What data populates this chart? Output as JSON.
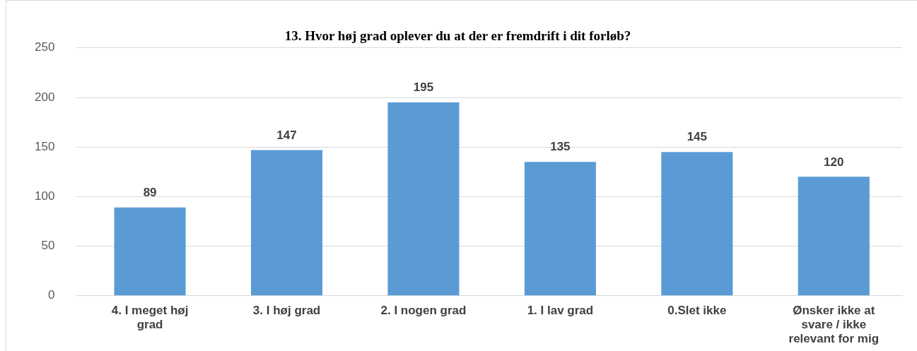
{
  "chart_data": {
    "type": "bar",
    "title": "13. Hvor høj grad oplever du at der er fremdrift i dit forløb?",
    "categories": [
      "4. I meget høj grad",
      "3. I høj grad",
      "2. I nogen grad",
      "1. I lav grad",
      "0.Slet ikke",
      "Ønsker ikke at svare / ikke relevant for mig"
    ],
    "values": [
      89,
      147,
      195,
      135,
      145,
      120
    ],
    "color": "#5b9bd5",
    "ylim": [
      0,
      250
    ],
    "yticks": [
      0,
      50,
      100,
      150,
      200,
      250
    ],
    "grid": "y",
    "data_labels": true,
    "legend": false
  }
}
